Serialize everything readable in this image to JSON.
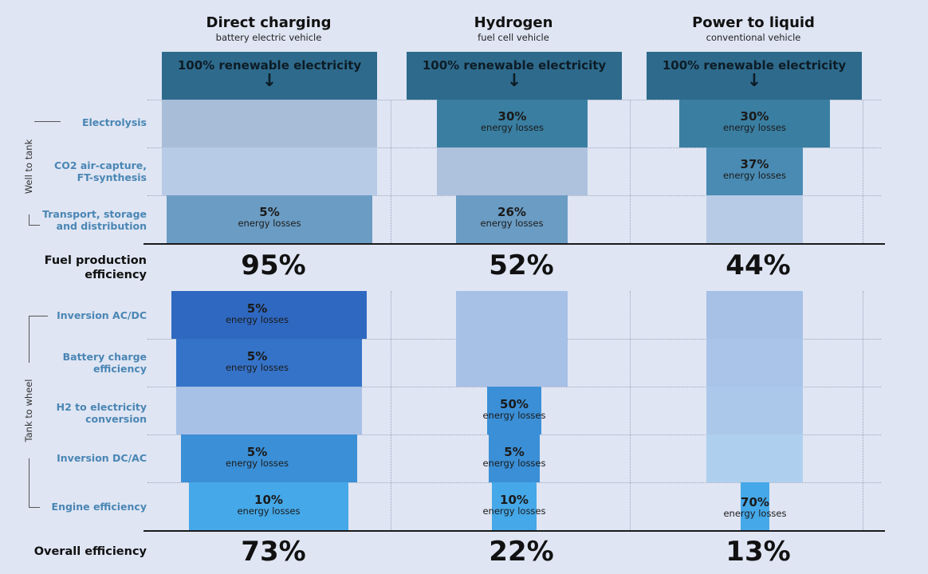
{
  "columns": [
    {
      "title": "Direct charging",
      "subtitle": "battery electric vehicle"
    },
    {
      "title": "Hydrogen",
      "subtitle": "fuel cell vehicle"
    },
    {
      "title": "Power to liquid",
      "subtitle": "conventional vehicle"
    }
  ],
  "source_box": {
    "text": "100% renewable electricity",
    "arrow": "↓"
  },
  "group_labels": {
    "well_to_tank": "Well to tank",
    "tank_to_wheel": "Tank to wheel"
  },
  "rows": {
    "electrolysis": "Electrolysis",
    "co2_capture": [
      "CO2 air-capture,",
      "FT-synthesis"
    ],
    "transport": [
      "Transport, storage",
      "and distribution"
    ],
    "inversion_acdc": "Inversion AC/DC",
    "battery_charge": [
      "Battery charge",
      "efficiency"
    ],
    "h2_conversion": [
      "H2 to electricity",
      "conversion"
    ],
    "inversion_dcac": "Inversion DC/AC",
    "engine": "Engine efficiency"
  },
  "summary": {
    "fuel_production_label": [
      "Fuel production",
      "efficiency"
    ],
    "overall_label": "Overall efficiency",
    "fuel_production": [
      "95%",
      "52%",
      "44%"
    ],
    "overall": [
      "73%",
      "22%",
      "13%"
    ]
  },
  "loss_text": "energy losses",
  "losses": {
    "direct": {
      "transport": "5%",
      "inversion_acdc": "5%",
      "battery_charge": "5%",
      "inversion_dcac": "5%",
      "engine": "10%"
    },
    "hydrogen": {
      "electrolysis": "30%",
      "transport": "26%",
      "h2_conversion": "50%",
      "inversion_dcac": "5%",
      "engine": "10%"
    },
    "ptl": {
      "electrolysis": "30%",
      "co2_capture": "37%",
      "engine": "70%"
    }
  },
  "colors": {
    "background": "#dfe5f3",
    "source_box": "#2e6a8c",
    "dark_bar": "#3a7ea1",
    "light_bar": "#a8bdd8",
    "pale_bar": "#b7cbe6",
    "ttw_dark": "#2f68c0",
    "ttw_mid": "#3b8fd6",
    "ttw_bright": "#45a8e8",
    "label_blue": "#4a86b4"
  }
}
